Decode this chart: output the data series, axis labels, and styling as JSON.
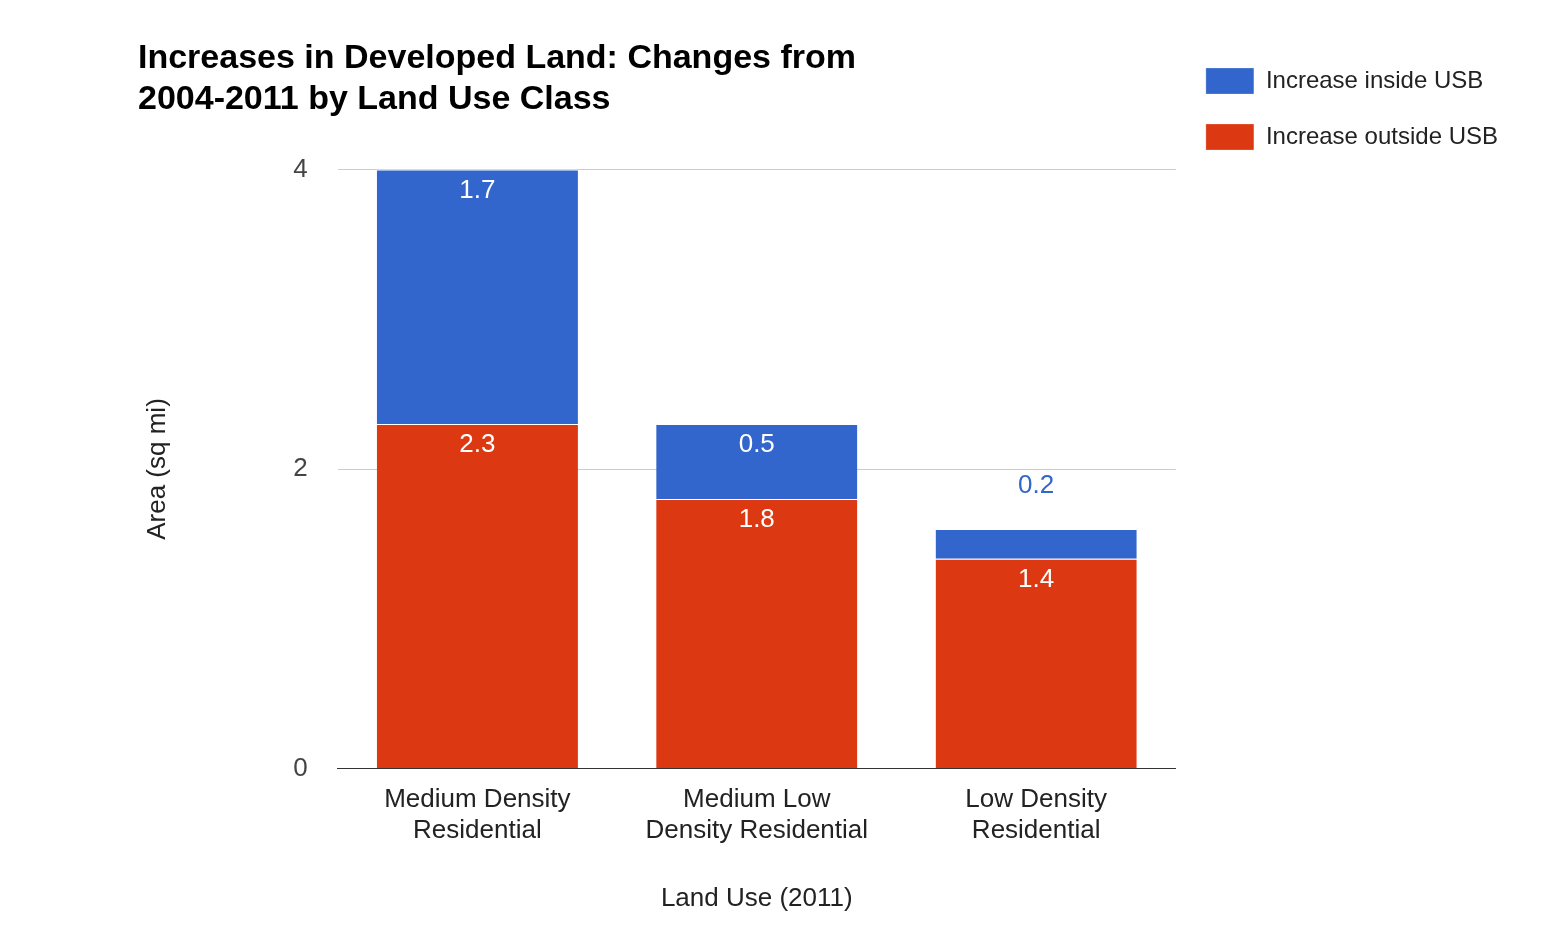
{
  "chart_data": {
    "type": "bar",
    "title": "Increases in Developed Land: Changes from 2004-2011 by Land Use Class",
    "xlabel": "Land Use (2011)",
    "ylabel": "Area (sq mi)",
    "categories": [
      "Medium Density Residential",
      "Medium Low Density Residential",
      "Low Density Residential"
    ],
    "series": [
      {
        "name": "Increase outside USB",
        "color": "#dc3912",
        "values": [
          2.3,
          1.8,
          1.4
        ]
      },
      {
        "name": "Increase inside USB",
        "color": "#3366cc",
        "values": [
          1.7,
          0.5,
          0.2
        ]
      }
    ],
    "stacked": true,
    "ylim": [
      0,
      4
    ],
    "yticks": [
      0,
      2,
      4
    ],
    "grid": "y",
    "legend": "right",
    "data_labels": true
  }
}
